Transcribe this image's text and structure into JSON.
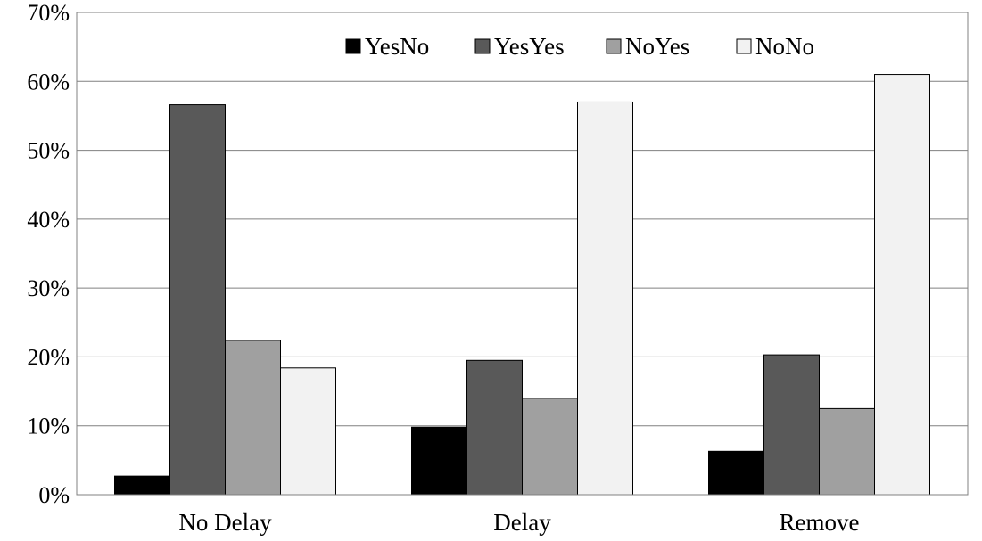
{
  "chart_data": {
    "type": "bar",
    "categories": [
      "No Delay",
      "Delay",
      "Remove"
    ],
    "series": [
      {
        "name": "YesNo",
        "color": "#000000",
        "values": [
          2.7,
          9.8,
          6.3
        ]
      },
      {
        "name": "YesYes",
        "color": "#595959",
        "values": [
          56.6,
          19.5,
          20.3
        ]
      },
      {
        "name": "NoYes",
        "color": "#a0a0a0",
        "values": [
          22.4,
          14.0,
          12.5
        ]
      },
      {
        "name": "NoNo",
        "color": "#f2f2f2",
        "values": [
          18.4,
          57.0,
          61.0
        ]
      }
    ],
    "y_ticks": [
      "0%",
      "10%",
      "20%",
      "30%",
      "40%",
      "50%",
      "60%",
      "70%"
    ],
    "ylim": [
      0,
      70
    ],
    "y_unit": "%",
    "grid": true,
    "legend_position": "top-center",
    "title": "",
    "xlabel": "",
    "ylabel": ""
  }
}
